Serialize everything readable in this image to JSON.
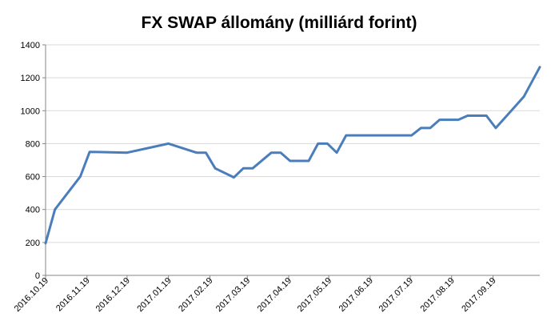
{
  "chart_data": {
    "type": "line",
    "title": "FX SWAP állomány (milliárd forint)",
    "xlabel": "",
    "ylabel": "",
    "ylim": [
      0,
      1400
    ],
    "yticks": [
      0,
      200,
      400,
      600,
      800,
      1000,
      1200,
      1400
    ],
    "grid": true,
    "legend": "none",
    "xlim": [
      "2016-10-19",
      "2017-10-24"
    ],
    "xtick_labels": [
      "2016.10.19",
      "2016.11.19",
      "2016.12.19",
      "2017.01.19",
      "2017.02.19",
      "2017.03.19",
      "2017.04.19",
      "2017.05.19",
      "2017.06.19",
      "2017.07.19",
      "2017.08.19",
      "2017.09.19"
    ],
    "xtick_dates": [
      "2016-10-19",
      "2016-11-19",
      "2016-12-19",
      "2017-01-19",
      "2017-02-19",
      "2017-03-19",
      "2017-04-19",
      "2017-05-19",
      "2017-06-19",
      "2017-07-19",
      "2017-08-19",
      "2017-09-19"
    ],
    "series": [
      {
        "color": "#4a7ebb",
        "points": [
          [
            "2016-10-19",
            195
          ],
          [
            "2016-10-26",
            400
          ],
          [
            "2016-11-14",
            600
          ],
          [
            "2016-11-21",
            750
          ],
          [
            "2016-12-19",
            745
          ],
          [
            "2017-01-19",
            800
          ],
          [
            "2017-02-09",
            745
          ],
          [
            "2017-02-16",
            745
          ],
          [
            "2017-02-23",
            650
          ],
          [
            "2017-03-09",
            595
          ],
          [
            "2017-03-16",
            650
          ],
          [
            "2017-03-23",
            650
          ],
          [
            "2017-04-06",
            745
          ],
          [
            "2017-04-13",
            745
          ],
          [
            "2017-04-20",
            695
          ],
          [
            "2017-05-04",
            695
          ],
          [
            "2017-05-11",
            800
          ],
          [
            "2017-05-18",
            800
          ],
          [
            "2017-05-25",
            745
          ],
          [
            "2017-06-01",
            850
          ],
          [
            "2017-07-20",
            850
          ],
          [
            "2017-07-27",
            895
          ],
          [
            "2017-08-03",
            895
          ],
          [
            "2017-08-10",
            945
          ],
          [
            "2017-08-24",
            945
          ],
          [
            "2017-08-31",
            970
          ],
          [
            "2017-09-14",
            970
          ],
          [
            "2017-09-21",
            895
          ],
          [
            "2017-10-12",
            1085
          ],
          [
            "2017-10-24",
            1265
          ]
        ]
      }
    ],
    "colors": {
      "line": "#4a7ebb",
      "grid": "#d9d9d9",
      "axis": "#868686",
      "text": "#000000"
    }
  }
}
